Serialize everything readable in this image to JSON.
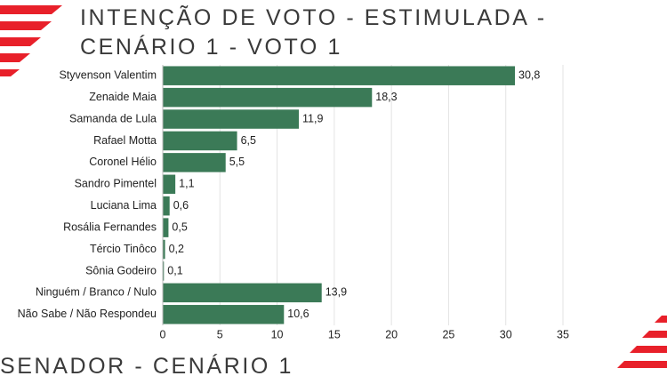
{
  "chart_data": {
    "type": "barh",
    "title": "INTENÇÃO DE VOTO - ESTIMULADA - CENÁRIO 1 - VOTO 1",
    "next_section": "SENADOR - CENÁRIO 1",
    "categories": [
      "Styvenson Valentim",
      "Zenaide Maia",
      "Samanda de Lula",
      "Rafael Motta",
      "Coronel Hélio",
      "Sandro Pimentel",
      "Luciana Lima",
      "Rosália Fernandes",
      "Tércio Tinôco",
      "Sônia Godeiro",
      "Ninguém / Branco / Nulo",
      "Não Sabe / Não Respondeu"
    ],
    "values": [
      30.8,
      18.3,
      11.9,
      6.5,
      5.5,
      1.1,
      0.6,
      0.5,
      0.2,
      0.1,
      13.9,
      10.6
    ],
    "value_labels": [
      "30,8",
      "18,3",
      "11,9",
      "6,5",
      "5,5",
      "1,1",
      "0,6",
      "0,5",
      "0,2",
      "0,1",
      "13,9",
      "10,6"
    ],
    "color": "#3b7a57",
    "xlim": [
      0,
      35
    ],
    "xticks": [
      0,
      5,
      10,
      15,
      20,
      25,
      30,
      35
    ],
    "grid": true
  }
}
